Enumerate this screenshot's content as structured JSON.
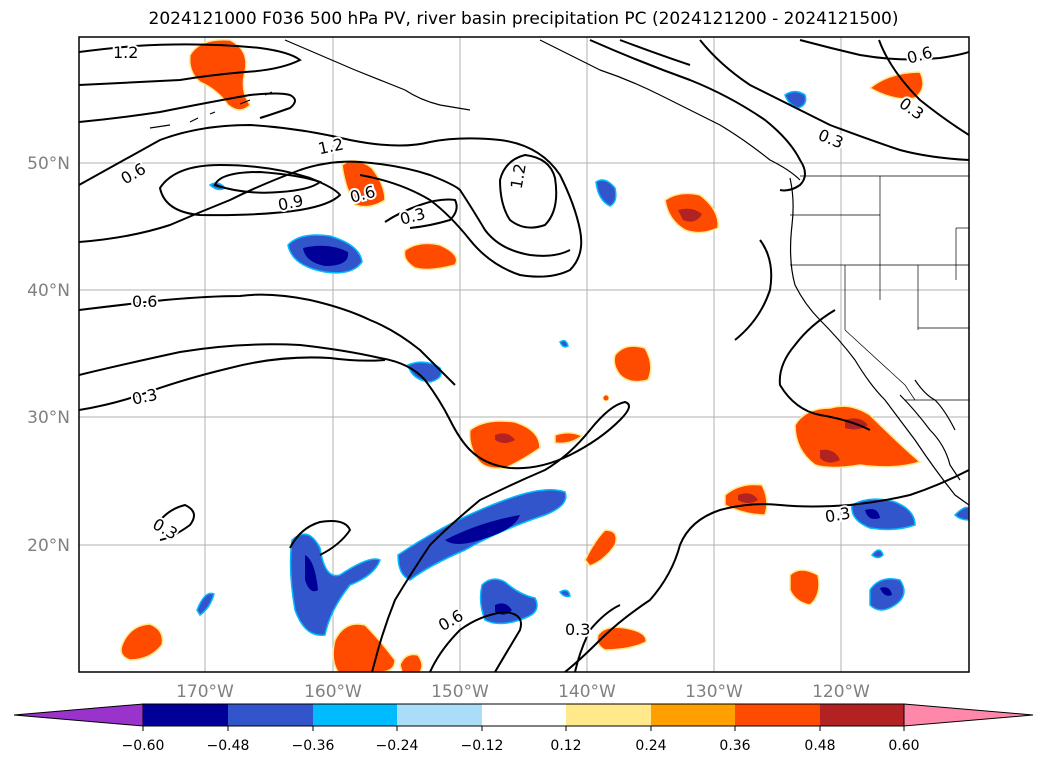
{
  "title": "2024121000 F036 500 hPa PV, river basin precipitation PC (2024121200 - 2024121500)",
  "lat_labels": [
    "50°N",
    "40°N",
    "30°N",
    "20°N"
  ],
  "lon_labels": [
    "170°W",
    "160°W",
    "150°W",
    "140°W",
    "130°W",
    "120°W"
  ],
  "contour_labels": [
    "1.2",
    "0.6",
    "1.2",
    "0.9",
    "0.6",
    "0.3",
    "1.2",
    "0.6",
    "0.3",
    "0.6",
    "0.3",
    "0.3",
    "0.3",
    "0.6",
    "0.3",
    "0.3"
  ],
  "colorbar": {
    "ticks": [
      "−0.60",
      "−0.48",
      "−0.36",
      "−0.24",
      "−0.12",
      "0.12",
      "0.24",
      "0.36",
      "0.48",
      "0.60"
    ],
    "colors": [
      "#9933cc",
      "#000099",
      "#3355cc",
      "#00bbff",
      "#aaddf7",
      "#ffffff",
      "#ffe98a",
      "#ffa000",
      "#ff4b00",
      "#b22222",
      "#ff88aa"
    ]
  },
  "colors": {
    "pos_fill": "#ff4b00",
    "pos_core": "#b22222",
    "pos_edge": "#ffe98a",
    "neg_fill": "#3355cc",
    "neg_core": "#000099",
    "neg_edge": "#00bbff"
  }
}
